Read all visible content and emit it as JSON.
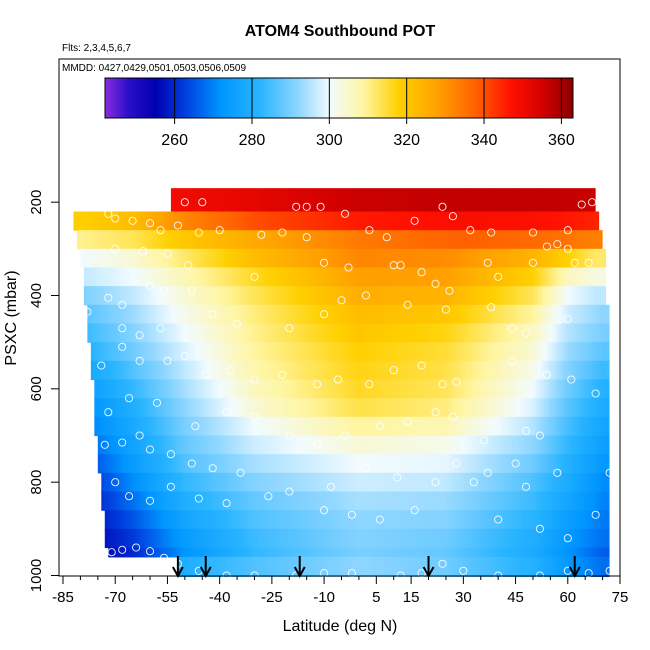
{
  "chart_data": {
    "type": "heatmap",
    "title": "ATOM4 Southbound POT",
    "subtitle_flights": "Flts: 2,3,4,5,6,7",
    "subtitle_dates": "MMDD: 0427,0429,0501,0503,0506,0509",
    "xlabel": "Latitude (deg N)",
    "ylabel": "PSXC (mbar)",
    "xlim": [
      -85,
      75
    ],
    "ylim": [
      1000,
      100
    ],
    "x_ticks": [
      -85,
      -70,
      -55,
      -40,
      -25,
      -10,
      5,
      15,
      30,
      45,
      60,
      75
    ],
    "y_ticks": [
      200,
      400,
      600,
      800,
      1000
    ],
    "colorbar": {
      "range": [
        242,
        363
      ],
      "ticks": [
        260,
        280,
        300,
        320,
        340,
        360
      ],
      "stops": [
        {
          "v": 242,
          "c": "#8a2be2"
        },
        {
          "v": 248,
          "c": "#2a10c8"
        },
        {
          "v": 255,
          "c": "#0000b0"
        },
        {
          "v": 263,
          "c": "#0040e0"
        },
        {
          "v": 272,
          "c": "#0096ff"
        },
        {
          "v": 282,
          "c": "#28b4ff"
        },
        {
          "v": 292,
          "c": "#8ed6ff"
        },
        {
          "v": 300,
          "c": "#f2fbff"
        },
        {
          "v": 309,
          "c": "#fff5a0"
        },
        {
          "v": 318,
          "c": "#ffd000"
        },
        {
          "v": 328,
          "c": "#ffa000"
        },
        {
          "v": 338,
          "c": "#ff6000"
        },
        {
          "v": 347,
          "c": "#ff1000"
        },
        {
          "v": 355,
          "c": "#d40000"
        },
        {
          "v": 363,
          "c": "#8a0000"
        }
      ]
    },
    "bands": [
      {
        "p": [
          170,
          220
        ],
        "x": [
          -54,
          68
        ],
        "lat": [
          -55,
          -30,
          0,
          30,
          55,
          68
        ],
        "val": [
          349,
          352,
          356,
          357,
          357,
          356
        ]
      },
      {
        "p": [
          220,
          260
        ],
        "x": [
          -82,
          69
        ],
        "lat": [
          -80,
          -65,
          -50,
          -30,
          0,
          30,
          55,
          68
        ],
        "val": [
          318,
          322,
          332,
          340,
          346,
          348,
          347,
          345
        ]
      },
      {
        "p": [
          260,
          300
        ],
        "x": [
          -81,
          70
        ],
        "lat": [
          -80,
          -65,
          -50,
          -30,
          0,
          30,
          55,
          68
        ],
        "val": [
          310,
          313,
          320,
          326,
          334,
          338,
          336,
          333
        ]
      },
      {
        "p": [
          300,
          340
        ],
        "x": [
          -80,
          71
        ],
        "lat": [
          -80,
          -65,
          -50,
          -30,
          0,
          25,
          50,
          60,
          68
        ],
        "val": [
          300,
          304,
          312,
          322,
          332,
          331,
          324,
          318,
          312
        ]
      },
      {
        "p": [
          340,
          380
        ],
        "x": [
          -79,
          71
        ],
        "lat": [
          -80,
          -65,
          -50,
          -30,
          0,
          25,
          50,
          60,
          68
        ],
        "val": [
          296,
          300,
          307,
          316,
          328,
          328,
          318,
          306,
          303
        ]
      },
      {
        "p": [
          380,
          420
        ],
        "x": [
          -79,
          71
        ],
        "lat": [
          -80,
          -65,
          -50,
          -30,
          0,
          25,
          50,
          60,
          68
        ],
        "val": [
          290,
          296,
          304,
          313,
          325,
          324,
          313,
          300,
          296
        ]
      },
      {
        "p": [
          420,
          460
        ],
        "x": [
          -78,
          72
        ],
        "lat": [
          -80,
          -65,
          -50,
          -30,
          0,
          25,
          50,
          60,
          70
        ],
        "val": [
          286,
          293,
          302,
          311,
          322,
          320,
          309,
          297,
          292
        ]
      },
      {
        "p": [
          460,
          500
        ],
        "x": [
          -78,
          72
        ],
        "lat": [
          -80,
          -65,
          -50,
          -30,
          0,
          25,
          50,
          60,
          70
        ],
        "val": [
          283,
          291,
          300,
          310,
          320,
          317,
          306,
          295,
          290
        ]
      },
      {
        "p": [
          500,
          540
        ],
        "x": [
          -77,
          72
        ],
        "lat": [
          -80,
          -65,
          -50,
          -30,
          0,
          25,
          50,
          60,
          70
        ],
        "val": [
          280,
          289,
          298,
          309,
          318,
          315,
          304,
          293,
          287
        ]
      },
      {
        "p": [
          540,
          580
        ],
        "x": [
          -77,
          72
        ],
        "lat": [
          -80,
          -65,
          -50,
          -30,
          0,
          25,
          50,
          60,
          70
        ],
        "val": [
          276,
          286,
          296,
          308,
          317,
          314,
          302,
          291,
          284
        ]
      },
      {
        "p": [
          580,
          620
        ],
        "x": [
          -76,
          72
        ],
        "lat": [
          -80,
          -65,
          -50,
          -30,
          0,
          25,
          50,
          60,
          70
        ],
        "val": [
          273,
          283,
          294,
          306,
          316,
          313,
          300,
          289,
          281
        ]
      },
      {
        "p": [
          620,
          660
        ],
        "x": [
          -76,
          72
        ],
        "lat": [
          -80,
          -65,
          -50,
          -30,
          0,
          25,
          50,
          60,
          70
        ],
        "val": [
          270,
          280,
          292,
          304,
          314,
          311,
          298,
          287,
          279
        ]
      },
      {
        "p": [
          660,
          700
        ],
        "x": [
          -76,
          72
        ],
        "lat": [
          -80,
          -65,
          -50,
          -30,
          0,
          25,
          50,
          60,
          70
        ],
        "val": [
          268,
          278,
          290,
          300,
          309,
          307,
          295,
          285,
          277
        ]
      },
      {
        "p": [
          700,
          740
        ],
        "x": [
          -75,
          72
        ],
        "lat": [
          -80,
          -65,
          -50,
          -30,
          0,
          25,
          50,
          60,
          70
        ],
        "val": [
          265,
          276,
          288,
          297,
          304,
          302,
          292,
          283,
          275
        ]
      },
      {
        "p": [
          740,
          780
        ],
        "x": [
          -75,
          72
        ],
        "lat": [
          -80,
          -65,
          -50,
          -30,
          0,
          25,
          50,
          60,
          70
        ],
        "val": [
          262,
          274,
          286,
          294,
          300,
          299,
          289,
          281,
          273
        ]
      },
      {
        "p": [
          780,
          820
        ],
        "x": [
          -74,
          72
        ],
        "lat": [
          -80,
          -65,
          -50,
          -30,
          0,
          25,
          50,
          60,
          70
        ],
        "val": [
          259,
          271,
          283,
          291,
          297,
          296,
          286,
          279,
          271
        ]
      },
      {
        "p": [
          820,
          860
        ],
        "x": [
          -74,
          72
        ],
        "lat": [
          -80,
          -65,
          -50,
          -30,
          0,
          25,
          50,
          60,
          70
        ],
        "val": [
          257,
          268,
          280,
          288,
          294,
          293,
          284,
          277,
          270
        ]
      },
      {
        "p": [
          860,
          900
        ],
        "x": [
          -73,
          72
        ],
        "lat": [
          -80,
          -65,
          -50,
          -30,
          0,
          25,
          50,
          60,
          70
        ],
        "val": [
          255,
          265,
          277,
          286,
          292,
          291,
          282,
          275,
          269
        ]
      },
      {
        "p": [
          900,
          940
        ],
        "x": [
          -73,
          72
        ],
        "lat": [
          -80,
          -65,
          -50,
          -30,
          0,
          25,
          50,
          60,
          70
        ],
        "val": [
          254,
          262,
          274,
          284,
          291,
          289,
          280,
          273,
          268
        ]
      },
      {
        "p": [
          940,
          960
        ],
        "x": [
          -72,
          72
        ],
        "lat": [
          -80,
          -65,
          -50,
          -30,
          0,
          25,
          50,
          60,
          70
        ],
        "val": [
          253,
          260,
          272,
          283,
          290,
          288,
          279,
          272,
          266
        ]
      },
      {
        "p": [
          960,
          1002
        ],
        "x": [
          -52,
          72
        ],
        "lat": [
          -55,
          -45,
          -30,
          0,
          25,
          50,
          60,
          70
        ],
        "val": [
          278,
          282,
          286,
          292,
          289,
          281,
          273,
          268
        ]
      }
    ],
    "arrows_lat": [
      -52,
      -44,
      -17,
      20,
      62
    ],
    "obs_points": [
      [
        -50,
        200
      ],
      [
        -45,
        200
      ],
      [
        -18,
        210
      ],
      [
        -15,
        210
      ],
      [
        -11,
        210
      ],
      [
        -4,
        225
      ],
      [
        3,
        260
      ],
      [
        8,
        275
      ],
      [
        16,
        240
      ],
      [
        24,
        210
      ],
      [
        27,
        230
      ],
      [
        32,
        260
      ],
      [
        38,
        265
      ],
      [
        50,
        265
      ],
      [
        60,
        260
      ],
      [
        64,
        205
      ],
      [
        67,
        200
      ],
      [
        -72,
        225
      ],
      [
        -70,
        235
      ],
      [
        -65,
        240
      ],
      [
        -60,
        245
      ],
      [
        -57,
        260
      ],
      [
        -52,
        250
      ],
      [
        -46,
        265
      ],
      [
        -40,
        260
      ],
      [
        -28,
        270
      ],
      [
        -22,
        265
      ],
      [
        -15,
        275
      ],
      [
        -70,
        300
      ],
      [
        -62,
        305
      ],
      [
        -55,
        310
      ],
      [
        -49,
        335
      ],
      [
        -30,
        360
      ],
      [
        -10,
        330
      ],
      [
        -3,
        340
      ],
      [
        10,
        335
      ],
      [
        12,
        335
      ],
      [
        18,
        350
      ],
      [
        22,
        375
      ],
      [
        26,
        390
      ],
      [
        37,
        330
      ],
      [
        40,
        360
      ],
      [
        50,
        330
      ],
      [
        54,
        295
      ],
      [
        57,
        290
      ],
      [
        60,
        300
      ],
      [
        62,
        330
      ],
      [
        66,
        330
      ],
      [
        -78,
        435
      ],
      [
        -72,
        405
      ],
      [
        -68,
        420
      ],
      [
        -60,
        380
      ],
      [
        -56,
        390
      ],
      [
        -48,
        390
      ],
      [
        -42,
        440
      ],
      [
        -35,
        460
      ],
      [
        -20,
        470
      ],
      [
        -10,
        440
      ],
      [
        -5,
        410
      ],
      [
        2,
        400
      ],
      [
        14,
        420
      ],
      [
        25,
        430
      ],
      [
        38,
        425
      ],
      [
        44,
        470
      ],
      [
        48,
        480
      ],
      [
        60,
        450
      ],
      [
        -68,
        470
      ],
      [
        -63,
        485
      ],
      [
        -57,
        470
      ],
      [
        -74,
        550
      ],
      [
        -68,
        510
      ],
      [
        -63,
        540
      ],
      [
        -55,
        540
      ],
      [
        -50,
        530
      ],
      [
        -44,
        570
      ],
      [
        -37,
        560
      ],
      [
        -30,
        580
      ],
      [
        -22,
        570
      ],
      [
        -12,
        590
      ],
      [
        -6,
        580
      ],
      [
        3,
        590
      ],
      [
        10,
        560
      ],
      [
        18,
        550
      ],
      [
        24,
        590
      ],
      [
        28,
        585
      ],
      [
        44,
        540
      ],
      [
        54,
        570
      ],
      [
        61,
        580
      ],
      [
        68,
        610
      ],
      [
        -72,
        650
      ],
      [
        -66,
        620
      ],
      [
        -58,
        630
      ],
      [
        -47,
        680
      ],
      [
        -38,
        650
      ],
      [
        -30,
        660
      ],
      [
        -20,
        700
      ],
      [
        -12,
        720
      ],
      [
        -4,
        700
      ],
      [
        6,
        680
      ],
      [
        14,
        670
      ],
      [
        22,
        650
      ],
      [
        27,
        660
      ],
      [
        36,
        710
      ],
      [
        48,
        690
      ],
      [
        52,
        700
      ],
      [
        -73,
        720
      ],
      [
        -68,
        715
      ],
      [
        -63,
        700
      ],
      [
        -60,
        730
      ],
      [
        -54,
        740
      ],
      [
        -48,
        760
      ],
      [
        -42,
        770
      ],
      [
        -34,
        780
      ],
      [
        -20,
        820
      ],
      [
        -8,
        810
      ],
      [
        2,
        770
      ],
      [
        11,
        790
      ],
      [
        22,
        800
      ],
      [
        28,
        760
      ],
      [
        33,
        800
      ],
      [
        37,
        780
      ],
      [
        45,
        760
      ],
      [
        48,
        810
      ],
      [
        57,
        780
      ],
      [
        -70,
        800
      ],
      [
        -66,
        830
      ],
      [
        -60,
        840
      ],
      [
        -54,
        810
      ],
      [
        -46,
        835
      ],
      [
        -38,
        845
      ],
      [
        -26,
        830
      ],
      [
        -10,
        860
      ],
      [
        -2,
        870
      ],
      [
        6,
        880
      ],
      [
        16,
        860
      ],
      [
        40,
        880
      ],
      [
        52,
        900
      ],
      [
        60,
        920
      ],
      [
        68,
        870
      ],
      [
        72,
        780
      ],
      [
        -74,
        960
      ],
      [
        -71,
        950
      ],
      [
        -68,
        945
      ],
      [
        -64,
        940
      ],
      [
        -60,
        948
      ],
      [
        -56,
        962
      ],
      [
        -52,
        975
      ],
      [
        -46,
        990
      ],
      [
        -38,
        1000
      ],
      [
        -30,
        1000
      ],
      [
        -18,
        1000
      ],
      [
        -10,
        995
      ],
      [
        -2,
        995
      ],
      [
        12,
        1000
      ],
      [
        18,
        995
      ],
      [
        24,
        975
      ],
      [
        30,
        990
      ],
      [
        40,
        1000
      ],
      [
        52,
        1000
      ],
      [
        60,
        990
      ],
      [
        66,
        995
      ],
      [
        72,
        990
      ]
    ]
  }
}
